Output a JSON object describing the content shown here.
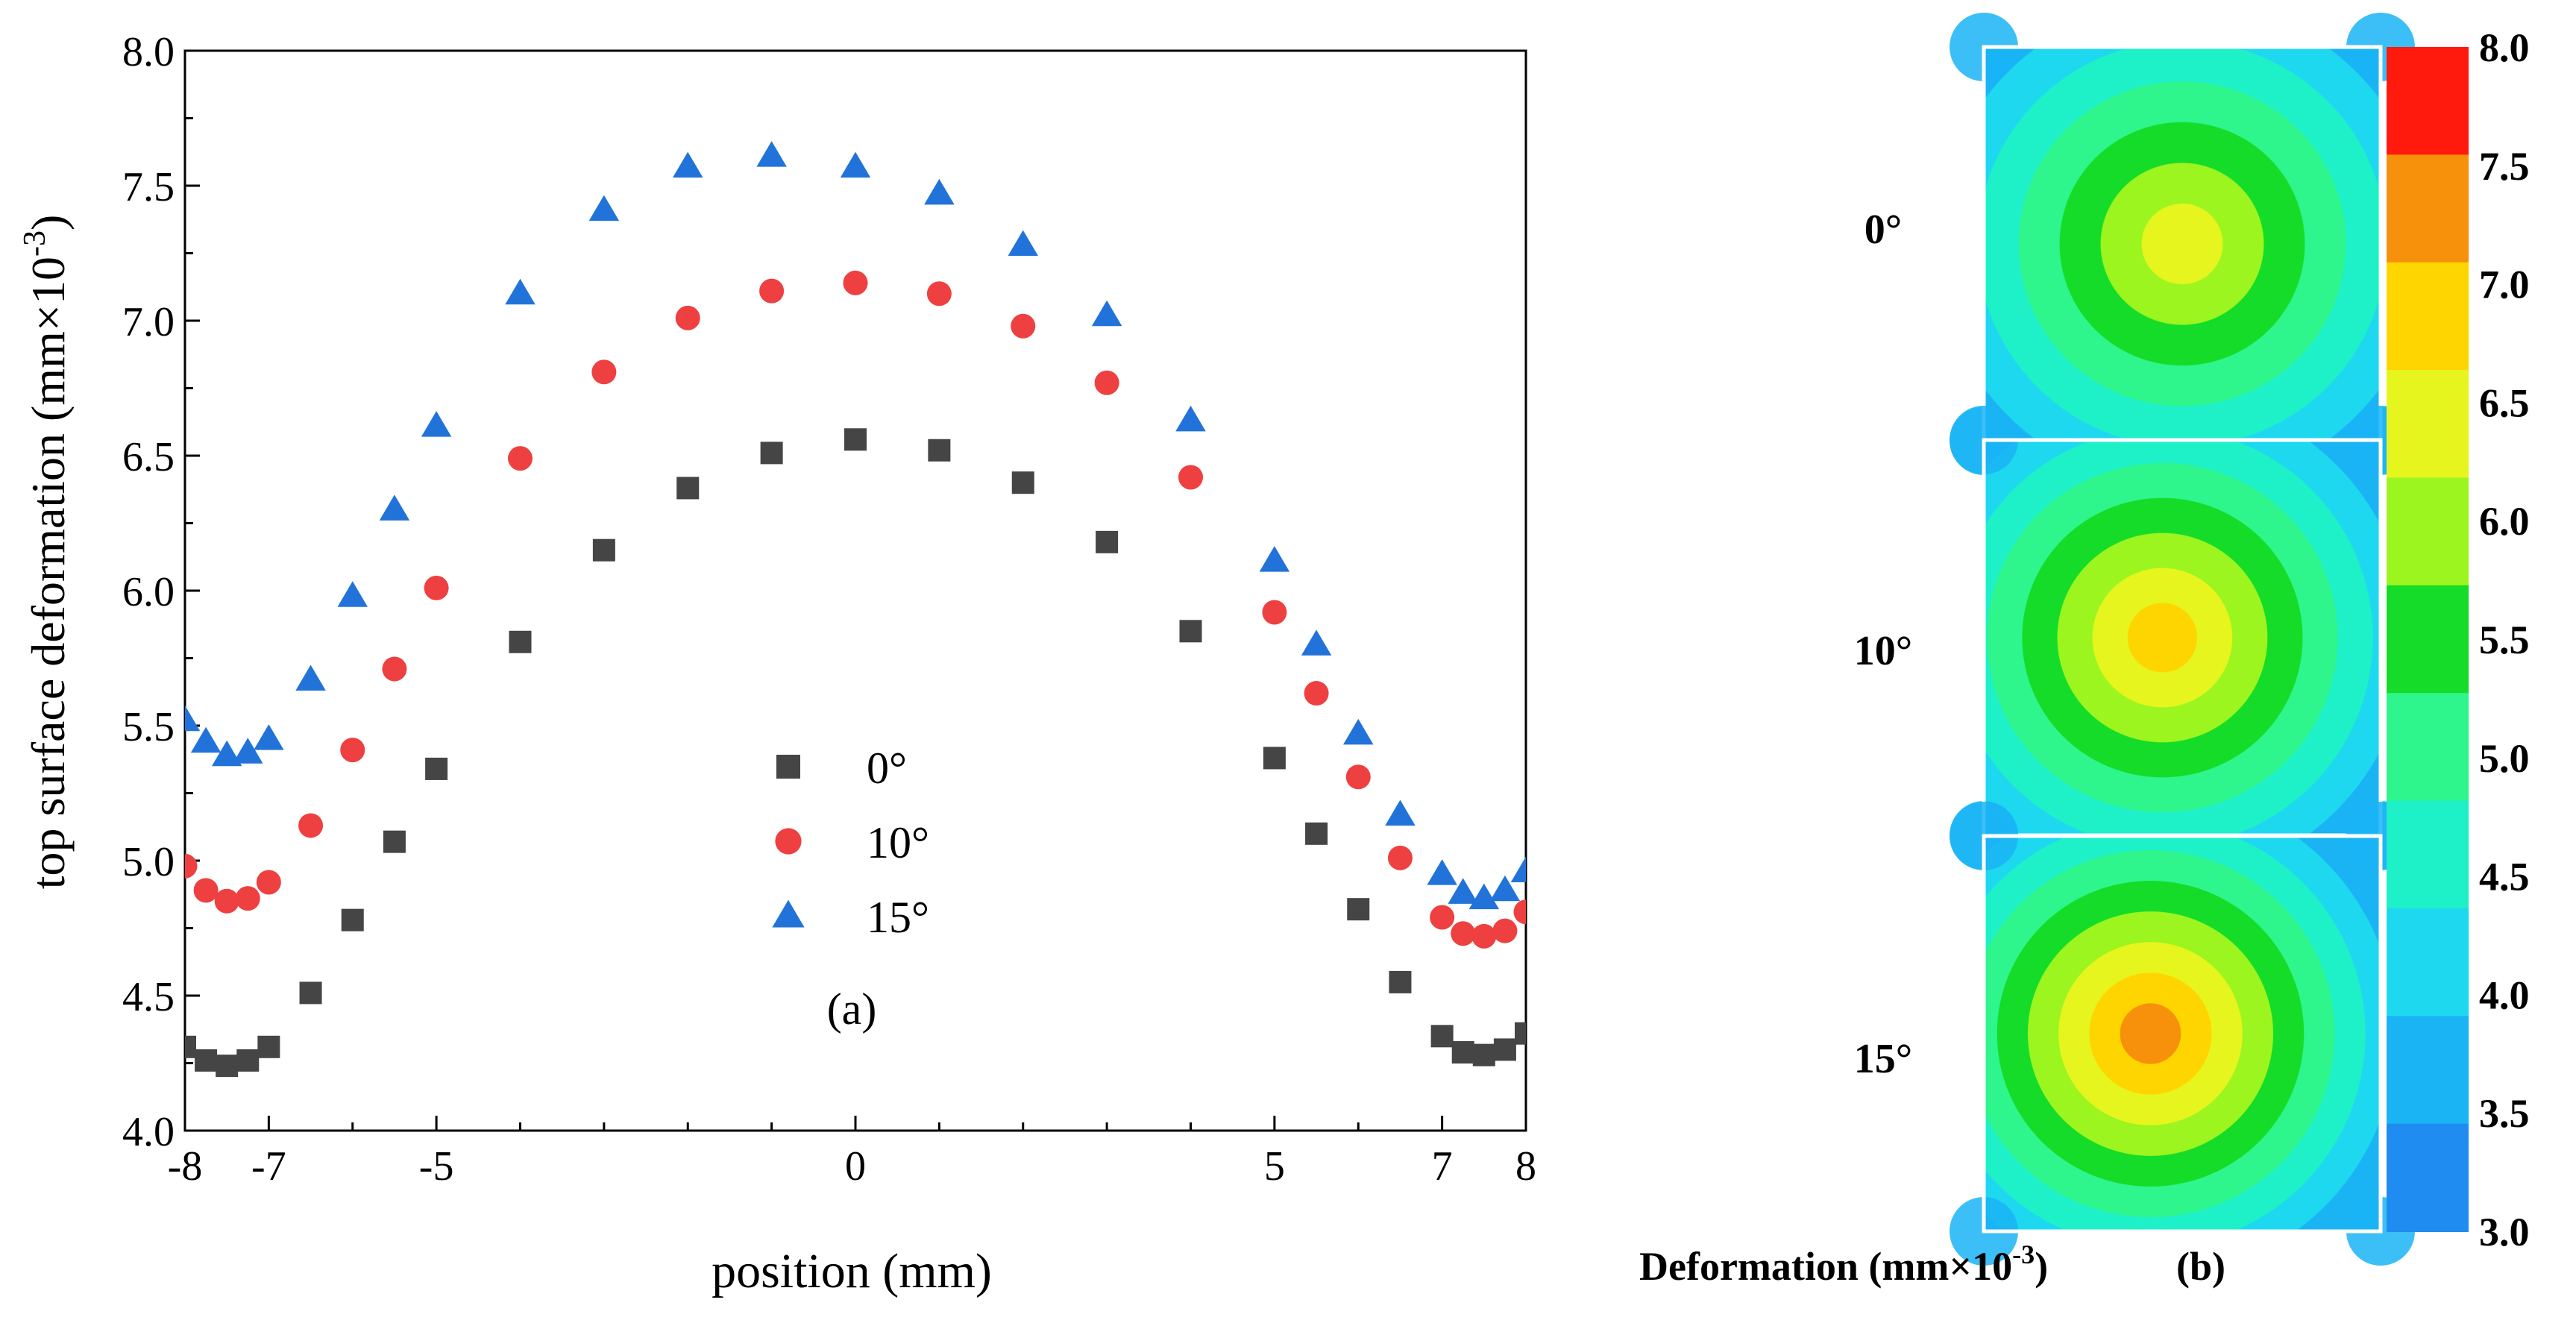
{
  "chart_data": [
    {
      "type": "scatter",
      "panel_label": "(a)",
      "xlabel": "position (mm)",
      "ylabel_main": "top surface deformation (mm×10",
      "ylabel_sup": "-3",
      "ylabel_end": ")",
      "xlim": [
        -8,
        8
      ],
      "ylim": [
        4.0,
        8.0
      ],
      "xticks": [
        -8,
        -7,
        -5,
        0,
        5,
        7,
        8
      ],
      "xtick_labels": [
        "-8",
        "-7",
        "-5",
        "0",
        "5",
        "7",
        "8"
      ],
      "yticks": [
        4.0,
        4.5,
        5.0,
        5.5,
        6.0,
        6.5,
        7.0,
        7.5,
        8.0
      ],
      "ytick_labels": [
        "4.0",
        "4.5",
        "5.0",
        "5.5",
        "6.0",
        "6.5",
        "7.0",
        "7.5",
        "8.0"
      ],
      "x": [
        -8,
        -7.75,
        -7.5,
        -7.25,
        -7,
        -6.5,
        -6,
        -5.5,
        -5,
        -4,
        -3,
        -2,
        -1,
        0,
        1,
        2,
        3,
        4,
        5,
        5.5,
        6,
        6.5,
        7,
        7.25,
        7.5,
        7.75,
        8
      ],
      "series": [
        {
          "name": "0°",
          "marker": "square",
          "color": "#454545",
          "values": [
            4.31,
            4.26,
            4.24,
            4.26,
            4.31,
            4.51,
            4.78,
            5.07,
            5.34,
            5.81,
            6.15,
            6.38,
            6.51,
            6.56,
            6.52,
            6.4,
            6.18,
            5.85,
            5.38,
            5.1,
            4.82,
            4.55,
            4.35,
            4.29,
            4.28,
            4.3,
            4.36
          ]
        },
        {
          "name": "10°",
          "marker": "circle",
          "color": "#ee4040",
          "values": [
            4.98,
            4.89,
            4.85,
            4.86,
            4.92,
            5.13,
            5.41,
            5.71,
            6.01,
            6.49,
            6.81,
            7.01,
            7.11,
            7.14,
            7.1,
            6.98,
            6.77,
            6.42,
            5.92,
            5.62,
            5.31,
            5.01,
            4.79,
            4.73,
            4.72,
            4.74,
            4.81
          ]
        },
        {
          "name": "15°",
          "marker": "triangle",
          "color": "#2273d9",
          "values": [
            5.52,
            5.44,
            5.39,
            5.4,
            5.45,
            5.67,
            5.98,
            6.3,
            6.61,
            7.1,
            7.41,
            7.57,
            7.61,
            7.57,
            7.47,
            7.28,
            7.02,
            6.63,
            6.11,
            5.8,
            5.47,
            5.17,
            4.95,
            4.88,
            4.86,
            4.89,
            4.96
          ]
        }
      ]
    },
    {
      "type": "heatmap",
      "panel_label": "(b)",
      "caption_main": "Deformation (mm×10",
      "caption_sup": "-3",
      "caption_end": ")",
      "row_labels": [
        "0°",
        "10°",
        "15°"
      ],
      "peak_values": [
        6.6,
        7.15,
        7.6
      ],
      "peak_center_x_fraction": [
        0.5,
        0.45,
        0.42
      ],
      "peak_center_y_fraction": [
        0.5,
        0.5,
        0.5
      ],
      "colorbar_min": 3.0,
      "colorbar_max": 8.0,
      "colorbar_ticks": [
        "8.0",
        "7.5",
        "7.0",
        "6.5",
        "6.0",
        "5.5",
        "5.0",
        "4.5",
        "4.0",
        "3.5",
        "3.0"
      ],
      "colorbar_colors": [
        "#ff1a0d",
        "#f7900a",
        "#ffd500",
        "#e6f51e",
        "#9cf51e",
        "#14dc28",
        "#2ef58c",
        "#1ef0c8",
        "#1ed8f0",
        "#1ab4f5",
        "#1e8cf0"
      ]
    }
  ]
}
